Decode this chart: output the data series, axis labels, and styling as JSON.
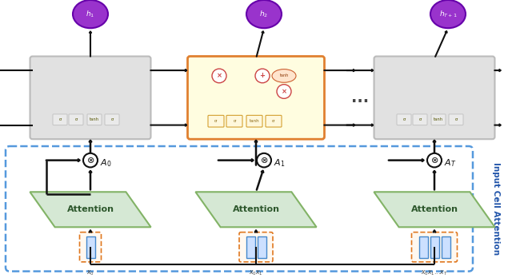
{
  "fig_width": 6.4,
  "fig_height": 3.48,
  "bg_color": "#ffffff",
  "rnn_box_color": "#d8d8d8",
  "rnn_box_edge": "#aaaaaa",
  "rnn_highlighted_color": "#fffde0",
  "rnn_highlighted_edge": "#e08030",
  "attention_color": "#d5e8d4",
  "attention_edge": "#82b366",
  "dashed_box_edge": "#5599dd",
  "h_bubble_color": "#9933cc",
  "h_bubble_edge": "#6600aa",
  "x_box_edge": "#e07820",
  "dots_color": "#444444",
  "arrow_color": "#111111",
  "vertical_label": "Input Cell Attention",
  "h_labels": [
    "h_1",
    "h_2",
    "h_{T+1}"
  ],
  "A_labels": [
    "A_0",
    "A_1",
    "A_T"
  ],
  "gate_labels": [
    "σ",
    "σ",
    "tanh",
    "σ"
  ]
}
